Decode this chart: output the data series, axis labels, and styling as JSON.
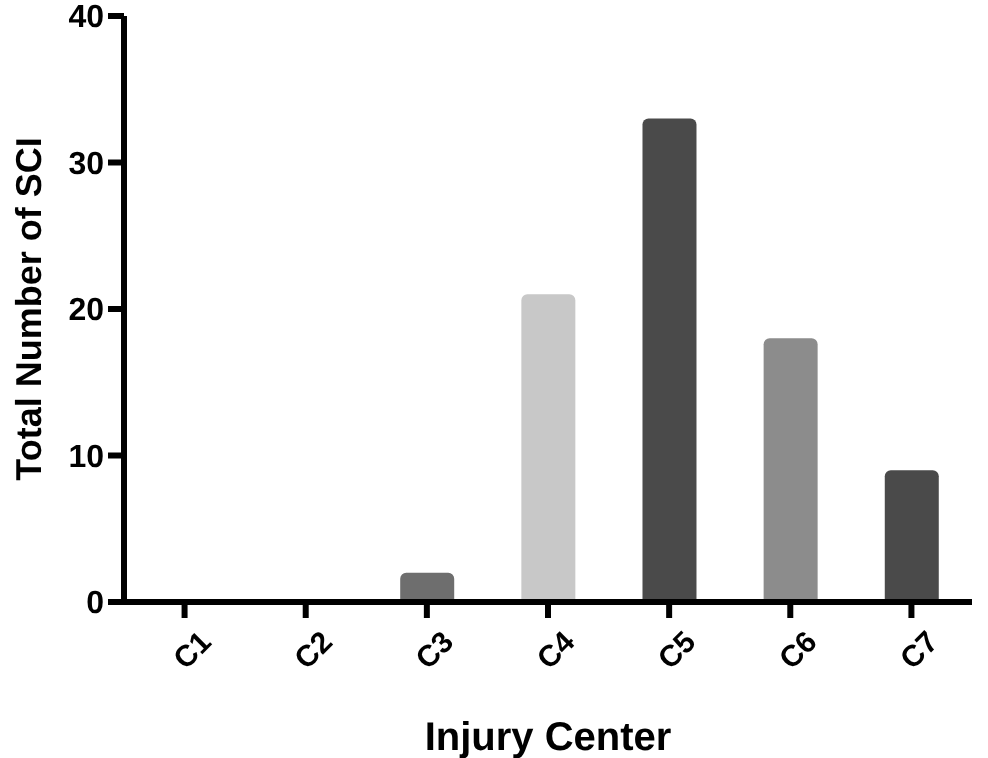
{
  "chart_data": {
    "type": "bar",
    "xlabel": "Injury Center",
    "ylabel": "Total Number of SCI",
    "categories": [
      "C1",
      "C2",
      "C3",
      "C4",
      "C5",
      "C6",
      "C7"
    ],
    "values": [
      0,
      0,
      2,
      21,
      33,
      18,
      9
    ],
    "colors": [
      "#4a4a4a",
      "#4a4a4a",
      "#6e6e6e",
      "#c8c8c8",
      "#4a4a4a",
      "#8c8c8c",
      "#4a4a4a"
    ],
    "ylim": [
      0,
      40
    ],
    "yticks": [
      0,
      10,
      20,
      30,
      40
    ],
    "grid": false,
    "legend": false
  }
}
